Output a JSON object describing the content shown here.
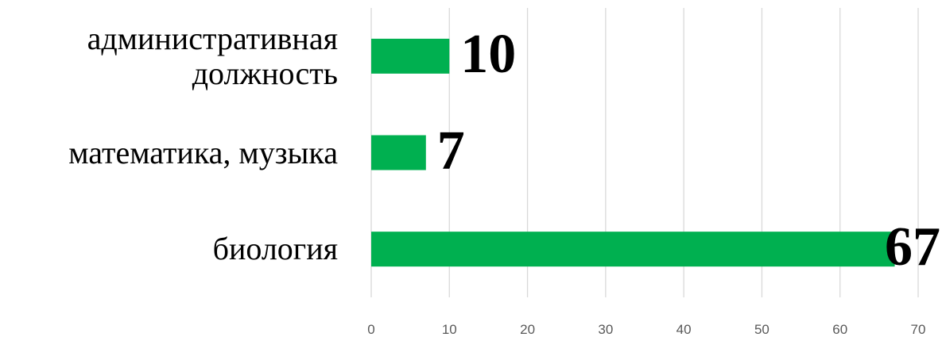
{
  "chart_data": {
    "type": "bar",
    "orientation": "horizontal",
    "categories": [
      "административная должность",
      "математика, музыка",
      "биология"
    ],
    "values": [
      10,
      7,
      67
    ],
    "color": "#00b050",
    "xlim": [
      0,
      70
    ],
    "xticks": [
      0,
      10,
      20,
      30,
      40,
      50,
      60,
      70
    ],
    "grid": true
  }
}
